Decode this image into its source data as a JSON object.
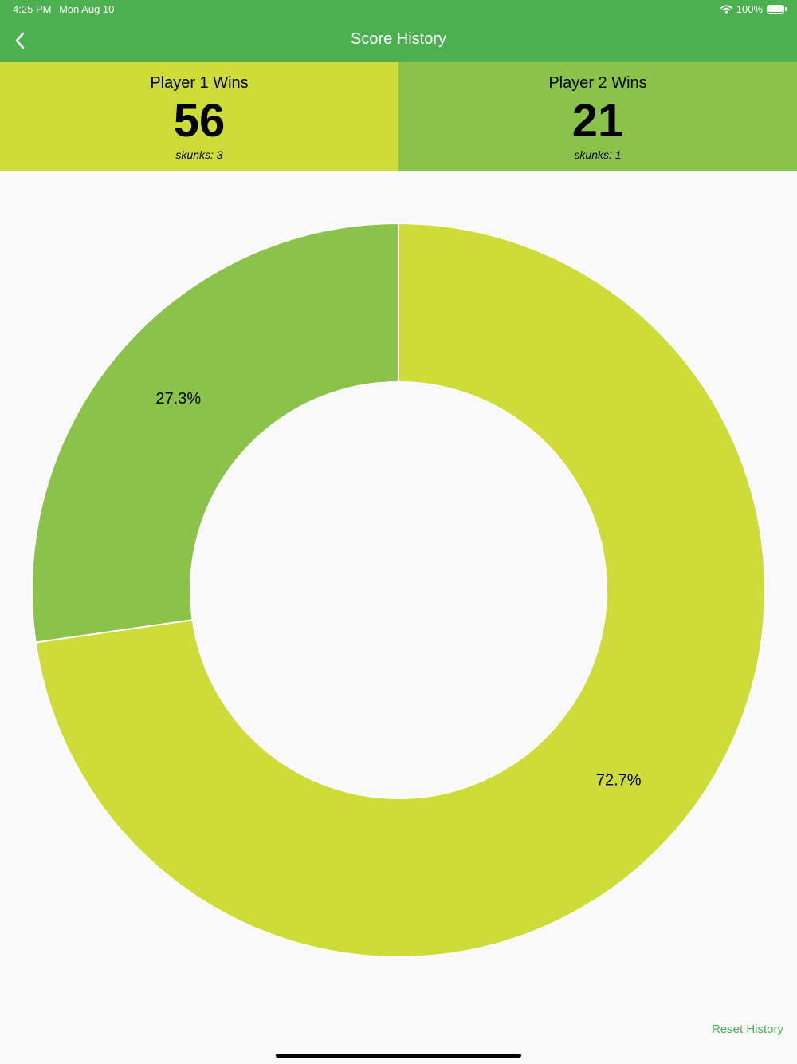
{
  "status_bar": {
    "time": "4:25 PM",
    "date": "Mon Aug 10",
    "battery": "100%",
    "icons": [
      "wifi-icon",
      "battery-icon"
    ]
  },
  "nav": {
    "title": "Score History",
    "back_icon": "chevron-left-icon"
  },
  "players": [
    {
      "label": "Player 1 Wins",
      "wins": "56",
      "skunks": "skunks: 3",
      "color": "#cddc39"
    },
    {
      "label": "Player 2 Wins",
      "wins": "21",
      "skunks": "skunks: 1",
      "color": "#8bc34a"
    }
  ],
  "chart_data": {
    "type": "pie",
    "categories": [
      "Player 1 Wins",
      "Player 2 Wins"
    ],
    "values": [
      56,
      21
    ],
    "labels": [
      "72.7%",
      "27.3%"
    ],
    "colors": [
      "#cddc39",
      "#8bc34a"
    ],
    "donut": true
  },
  "actions": {
    "reset_label": "Reset History"
  },
  "colors": {
    "header": "#4caf50",
    "background": "#f9f9f9",
    "accent_text": "#4caf50"
  }
}
